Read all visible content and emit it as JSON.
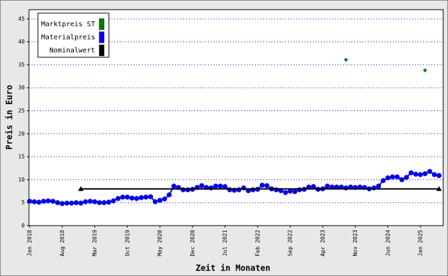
{
  "chart_data": {
    "type": "line",
    "ylabel": "Preis in Euro",
    "xlabel": "Zeit in Monaten",
    "categories": [
      "Jan 2018",
      null,
      null,
      null,
      null,
      null,
      null,
      "Aug 2018",
      null,
      null,
      null,
      null,
      null,
      null,
      "Mar 2019",
      null,
      null,
      null,
      null,
      null,
      null,
      "Oct 2019",
      null,
      null,
      null,
      null,
      null,
      null,
      "May 2020",
      null,
      null,
      null,
      null,
      null,
      null,
      "Dec 2020",
      null,
      null,
      null,
      null,
      null,
      null,
      "Jul 2021",
      null,
      null,
      null,
      null,
      null,
      null,
      "Feb 2022",
      null,
      null,
      null,
      null,
      null,
      null,
      "Sep 2022",
      null,
      null,
      null,
      null,
      null,
      null,
      "Apr 2023",
      null,
      null,
      null,
      null,
      null,
      null,
      "Nov 2023",
      null,
      null,
      null,
      null,
      null,
      null,
      "Jun 2024",
      null,
      null,
      null,
      null,
      null,
      null,
      "Jan 2025",
      null,
      null,
      null,
      null
    ],
    "series": [
      {
        "name": "Marktpreis ST",
        "color": "#008000",
        "marker": "diamond",
        "values": [
          null,
          null,
          null,
          null,
          null,
          null,
          null,
          null,
          null,
          null,
          null,
          null,
          null,
          null,
          null,
          null,
          null,
          null,
          null,
          null,
          null,
          null,
          null,
          null,
          null,
          null,
          null,
          null,
          null,
          null,
          null,
          null,
          null,
          null,
          null,
          null,
          null,
          null,
          null,
          null,
          null,
          null,
          null,
          null,
          null,
          null,
          null,
          null,
          null,
          null,
          null,
          null,
          null,
          null,
          null,
          null,
          null,
          null,
          null,
          null,
          null,
          null,
          null,
          null,
          null,
          null,
          null,
          null,
          36.1,
          null,
          null,
          null,
          null,
          null,
          null,
          null,
          null,
          null,
          null,
          null,
          null,
          null,
          null,
          null,
          null,
          33.8,
          null,
          null,
          null
        ]
      },
      {
        "name": "Materialpreis",
        "color": "#0000ff",
        "marker": "circle",
        "values": [
          5.3,
          5.2,
          5.1,
          5.3,
          5.4,
          5.3,
          5.0,
          4.8,
          4.9,
          4.9,
          5.0,
          4.9,
          5.2,
          5.3,
          5.2,
          5.0,
          5.0,
          5.1,
          5.4,
          5.9,
          6.2,
          6.2,
          6.0,
          5.9,
          6.1,
          6.2,
          6.3,
          5.2,
          5.5,
          5.8,
          6.7,
          8.6,
          8.3,
          7.8,
          7.8,
          7.9,
          8.3,
          8.7,
          8.3,
          8.2,
          8.6,
          8.6,
          8.5,
          7.8,
          7.7,
          7.8,
          8.2,
          7.6,
          7.8,
          7.9,
          8.8,
          8.7,
          8.0,
          7.8,
          7.6,
          7.2,
          7.5,
          7.4,
          7.8,
          7.9,
          8.4,
          8.5,
          7.9,
          8.0,
          8.6,
          8.4,
          8.4,
          8.4,
          8.2,
          8.4,
          8.3,
          8.4,
          8.3,
          8.0,
          8.2,
          8.6,
          9.8,
          10.4,
          10.6,
          10.6,
          10.0,
          10.5,
          11.5,
          11.2,
          11.1,
          11.3,
          11.8,
          11.1,
          10.9
        ]
      },
      {
        "name": "Nominalwert",
        "color": "#000000",
        "marker": "triangle",
        "values": [
          null,
          null,
          null,
          null,
          null,
          null,
          null,
          null,
          null,
          null,
          null,
          8,
          8,
          8,
          8,
          8,
          8,
          8,
          8,
          8,
          8,
          8,
          8,
          8,
          8,
          8,
          8,
          8,
          8,
          8,
          8,
          8,
          8,
          8,
          8,
          8,
          8,
          8,
          8,
          8,
          8,
          8,
          8,
          8,
          8,
          8,
          8,
          8,
          8,
          8,
          8,
          8,
          8,
          8,
          8,
          8,
          8,
          8,
          8,
          8,
          8,
          8,
          8,
          8,
          8,
          8,
          8,
          8,
          8,
          8,
          8,
          8,
          8,
          8,
          8,
          8,
          8,
          8,
          8,
          8,
          8,
          8,
          8,
          8,
          8,
          8,
          8,
          8,
          8
        ]
      }
    ],
    "ylim": [
      0,
      47
    ],
    "yticks": [
      0,
      5,
      10,
      15,
      20,
      25,
      30,
      35,
      40,
      45
    ],
    "grid": true,
    "legend": "upper left"
  }
}
